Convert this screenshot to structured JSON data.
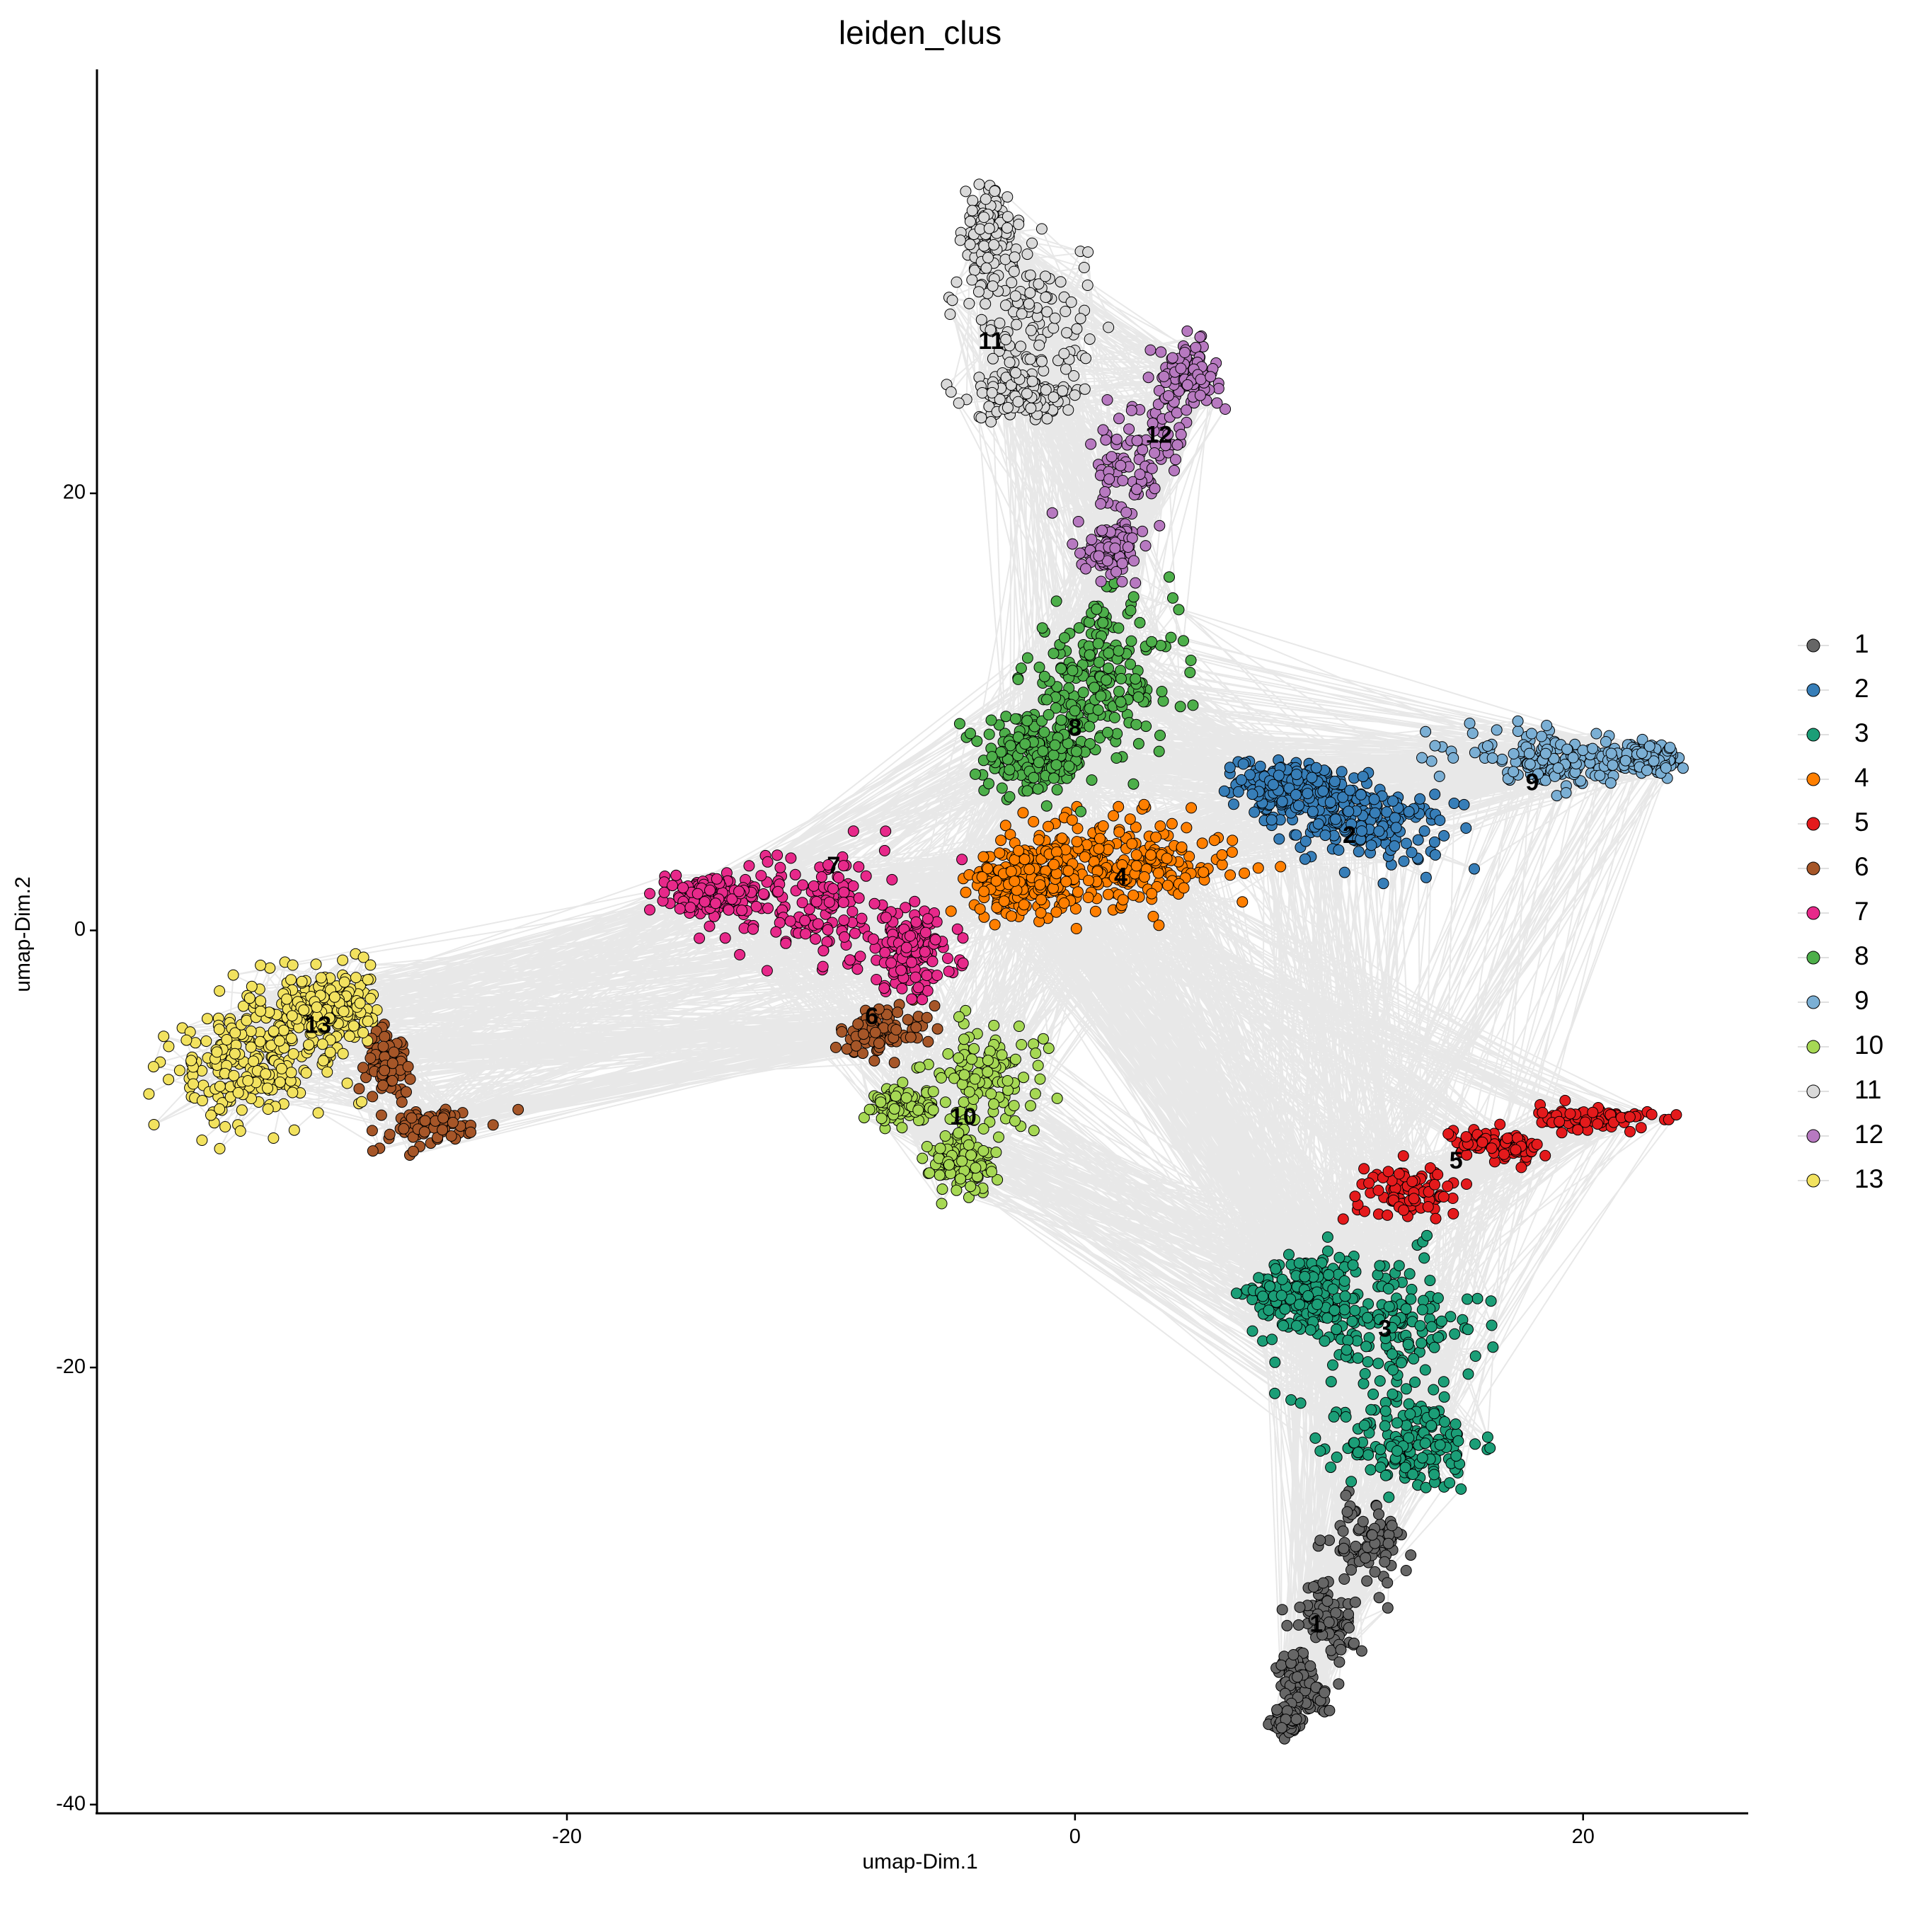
{
  "chart_data": {
    "type": "scatter",
    "title": "leiden_clus",
    "xlabel": "umap-Dim.1",
    "ylabel": "umap-Dim.2",
    "xlim": [
      -38.5,
      26.5
    ],
    "ylim": [
      -40.4,
      39.4
    ],
    "x_ticks": [
      -20,
      0,
      20
    ],
    "y_ticks": [
      20,
      0,
      -20,
      -40
    ],
    "grid": false,
    "legend_position": "right",
    "network_edges": true,
    "clusters": [
      {
        "name": "1",
        "color": "#666666",
        "label_x": 9.5,
        "label_y": -31.8
      },
      {
        "name": "2",
        "color": "#377EB8",
        "label_x": 10.8,
        "label_y": 4.3
      },
      {
        "name": "3",
        "color": "#1B9E77",
        "label_x": 12.2,
        "label_y": -18.3
      },
      {
        "name": "4",
        "color": "#FF7F00",
        "label_x": 1.8,
        "label_y": 2.4
      },
      {
        "name": "5",
        "color": "#E41A1C",
        "label_x": 15.0,
        "label_y": -10.6
      },
      {
        "name": "6",
        "color": "#A65628",
        "label_x": -8.0,
        "label_y": -4.0
      },
      {
        "name": "7",
        "color": "#E7298A",
        "label_x": -9.5,
        "label_y": 2.9
      },
      {
        "name": "8",
        "color": "#4DAF4A",
        "label_x": 0.0,
        "label_y": 9.2
      },
      {
        "name": "9",
        "color": "#7BAFD4",
        "label_x": 18.0,
        "label_y": 6.7
      },
      {
        "name": "10",
        "color": "#A6D854",
        "label_x": -4.4,
        "label_y": -8.6
      },
      {
        "name": "11",
        "color": "#D9D9D9",
        "label_x": -3.3,
        "label_y": 26.9
      },
      {
        "name": "12",
        "color": "#B779C0",
        "label_x": 3.3,
        "label_y": 22.6
      },
      {
        "name": "13",
        "color": "#F2E25F",
        "label_x": -29.8,
        "label_y": -4.4
      }
    ]
  }
}
